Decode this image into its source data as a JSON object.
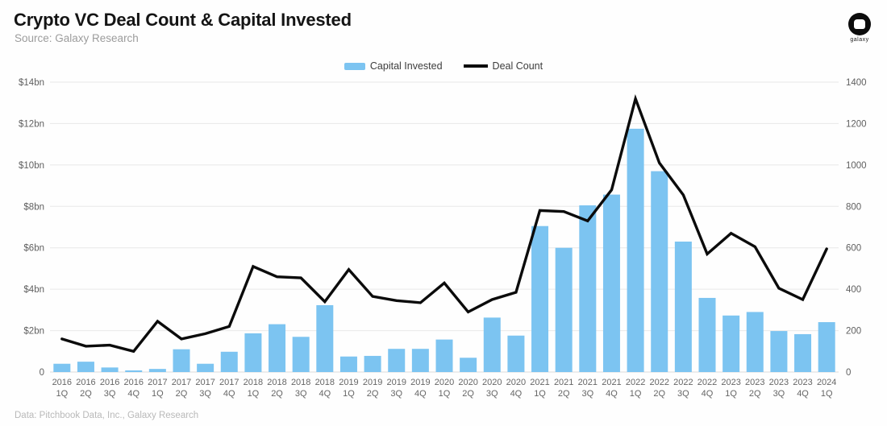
{
  "header": {
    "title": "Crypto VC Deal Count & Capital Invested",
    "subtitle": "Source: Galaxy Research",
    "logo_text": "galaxy"
  },
  "legend": {
    "capital_label": "Capital Invested",
    "deals_label": "Deal Count"
  },
  "footer": {
    "note": "Data: Pitchbook Data, Inc., Galaxy Research"
  },
  "colors": {
    "bar": "#7CC4F1",
    "line": "#0b0b0b",
    "grid": "#e8e8e8",
    "axis_text": "#5f5f5f",
    "x_text": "#666666"
  },
  "chart_data": {
    "type": "bar+line combo",
    "title": "Crypto VC Deal Count & Capital Invested",
    "categories": [
      "2016 1Q",
      "2016 2Q",
      "2016 3Q",
      "2016 4Q",
      "2017 1Q",
      "2017 2Q",
      "2017 3Q",
      "2017 4Q",
      "2018 1Q",
      "2018 2Q",
      "2018 3Q",
      "2018 4Q",
      "2019 1Q",
      "2019 2Q",
      "2019 3Q",
      "2019 4Q",
      "2020 1Q",
      "2020 2Q",
      "2020 3Q",
      "2020 4Q",
      "2021 1Q",
      "2021 2Q",
      "2021 3Q",
      "2021 4Q",
      "2022 1Q",
      "2022 2Q",
      "2022 3Q",
      "2022 4Q",
      "2023 1Q",
      "2023 2Q",
      "2023 3Q",
      "2023 4Q",
      "2024 1Q"
    ],
    "series": [
      {
        "name": "Capital Invested",
        "type": "bar",
        "axis": "left",
        "unit": "$bn",
        "values": [
          0.4,
          0.5,
          0.22,
          0.08,
          0.15,
          1.1,
          0.4,
          0.98,
          1.87,
          2.31,
          1.7,
          3.23,
          0.75,
          0.78,
          1.12,
          1.12,
          1.57,
          0.69,
          2.63,
          1.76,
          7.05,
          6.0,
          8.05,
          8.57,
          11.75,
          9.7,
          6.3,
          3.58,
          2.73,
          2.9,
          1.98,
          1.83,
          2.41
        ]
      },
      {
        "name": "Deal Count",
        "type": "line",
        "axis": "right",
        "unit": "deals",
        "values": [
          160,
          125,
          130,
          100,
          245,
          160,
          185,
          220,
          510,
          460,
          455,
          340,
          495,
          365,
          345,
          335,
          430,
          290,
          350,
          385,
          780,
          775,
          730,
          880,
          1320,
          1010,
          855,
          570,
          670,
          605,
          405,
          350,
          595
        ]
      }
    ],
    "left_axis": {
      "min": 0,
      "max": 14,
      "tick_step": 2,
      "labels_bottom_to_top": [
        "0",
        "$2bn",
        "$4bn",
        "$6bn",
        "$8bn",
        "$10bn",
        "$12bn",
        "$14bn"
      ]
    },
    "right_axis": {
      "min": 0,
      "max": 1400,
      "tick_step": 200,
      "labels_bottom_to_top": [
        "0",
        "200",
        "400",
        "600",
        "800",
        "1000",
        "1200",
        "1400"
      ]
    },
    "grid": "horizontal only",
    "legend_position": "top center"
  }
}
